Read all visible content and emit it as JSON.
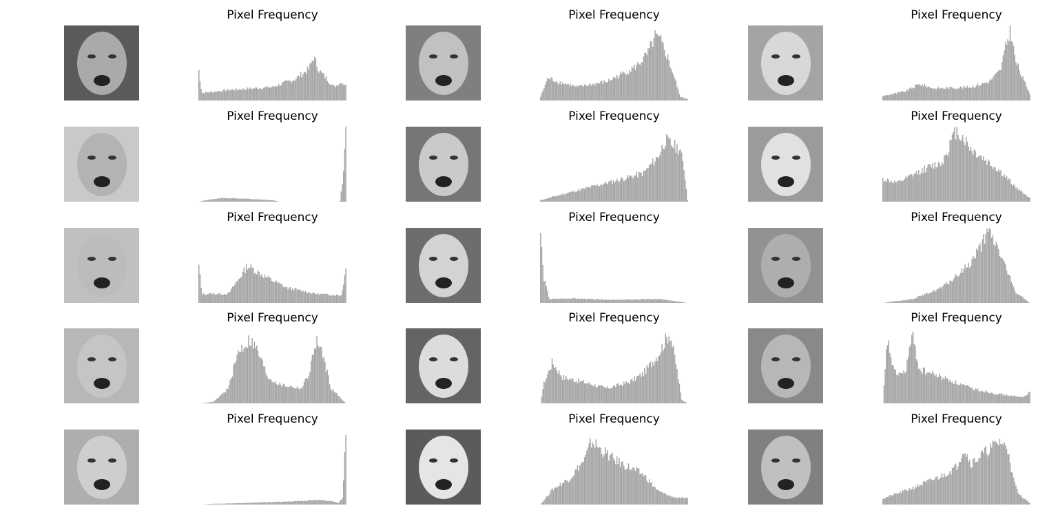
{
  "figure": {
    "rows": 5,
    "cols": 3,
    "panel_title": "Pixel Frequency",
    "bar_color": "#a6a6a6"
  },
  "chart_data": [
    {
      "type": "bar",
      "title": "Pixel Frequency",
      "face_icon": "face-photo",
      "profile": [
        [
          0,
          0.4
        ],
        [
          0.02,
          0.1
        ],
        [
          0.2,
          0.14
        ],
        [
          0.5,
          0.18
        ],
        [
          0.65,
          0.28
        ],
        [
          0.75,
          0.42
        ],
        [
          0.78,
          0.58
        ],
        [
          0.82,
          0.4
        ],
        [
          0.92,
          0.18
        ],
        [
          0.97,
          0.25
        ],
        [
          1,
          0.2
        ]
      ]
    },
    {
      "type": "bar",
      "title": "Pixel Frequency",
      "face_icon": "face-photo",
      "profile": [
        [
          0,
          0.05
        ],
        [
          0.05,
          0.3
        ],
        [
          0.12,
          0.25
        ],
        [
          0.25,
          0.18
        ],
        [
          0.45,
          0.25
        ],
        [
          0.65,
          0.45
        ],
        [
          0.73,
          0.62
        ],
        [
          0.78,
          0.85
        ],
        [
          0.82,
          0.78
        ],
        [
          0.87,
          0.55
        ],
        [
          0.92,
          0.25
        ],
        [
          0.95,
          0.05
        ],
        [
          1,
          0.02
        ]
      ]
    },
    {
      "type": "bar",
      "title": "Pixel Frequency",
      "face_icon": "face-photo",
      "profile": [
        [
          0,
          0.06
        ],
        [
          0.15,
          0.12
        ],
        [
          0.25,
          0.22
        ],
        [
          0.35,
          0.16
        ],
        [
          0.6,
          0.18
        ],
        [
          0.72,
          0.25
        ],
        [
          0.8,
          0.4
        ],
        [
          0.84,
          0.75
        ],
        [
          0.87,
          0.95
        ],
        [
          0.9,
          0.55
        ],
        [
          0.95,
          0.3
        ],
        [
          1,
          0.1
        ]
      ]
    },
    {
      "type": "bar",
      "title": "Pixel Frequency",
      "face_icon": "face-photo",
      "profile": [
        [
          0,
          0.0
        ],
        [
          0.05,
          0.02
        ],
        [
          0.15,
          0.05
        ],
        [
          0.3,
          0.04
        ],
        [
          0.5,
          0.02
        ],
        [
          0.55,
          0.0
        ],
        [
          0.96,
          0.0
        ],
        [
          0.98,
          0.3
        ],
        [
          1,
          0.98
        ]
      ]
    },
    {
      "type": "bar",
      "title": "Pixel Frequency",
      "face_icon": "face-photo",
      "profile": [
        [
          0,
          0.02
        ],
        [
          0.15,
          0.1
        ],
        [
          0.35,
          0.2
        ],
        [
          0.55,
          0.3
        ],
        [
          0.7,
          0.38
        ],
        [
          0.8,
          0.6
        ],
        [
          0.85,
          0.82
        ],
        [
          0.9,
          0.75
        ],
        [
          0.95,
          0.7
        ],
        [
          0.98,
          0.4
        ],
        [
          1,
          0.02
        ]
      ]
    },
    {
      "type": "bar",
      "title": "Pixel Frequency",
      "face_icon": "face-photo",
      "profile": [
        [
          0,
          0.3
        ],
        [
          0.1,
          0.25
        ],
        [
          0.2,
          0.35
        ],
        [
          0.3,
          0.45
        ],
        [
          0.4,
          0.52
        ],
        [
          0.5,
          0.95
        ],
        [
          0.55,
          0.85
        ],
        [
          0.6,
          0.7
        ],
        [
          0.7,
          0.55
        ],
        [
          0.8,
          0.4
        ],
        [
          0.9,
          0.2
        ],
        [
          1,
          0.05
        ]
      ]
    },
    {
      "type": "bar",
      "title": "Pixel Frequency",
      "face_icon": "face-photo",
      "profile": [
        [
          0,
          0.5
        ],
        [
          0.02,
          0.12
        ],
        [
          0.2,
          0.12
        ],
        [
          0.3,
          0.4
        ],
        [
          0.33,
          0.5
        ],
        [
          0.45,
          0.35
        ],
        [
          0.6,
          0.2
        ],
        [
          0.8,
          0.12
        ],
        [
          0.97,
          0.1
        ],
        [
          1,
          0.45
        ]
      ]
    },
    {
      "type": "bar",
      "title": "Pixel Frequency",
      "face_icon": "face-photo",
      "profile": [
        [
          0,
          0.95
        ],
        [
          0.02,
          0.35
        ],
        [
          0.04,
          0.2
        ],
        [
          0.06,
          0.05
        ],
        [
          0.2,
          0.06
        ],
        [
          0.5,
          0.04
        ],
        [
          0.8,
          0.05
        ],
        [
          0.9,
          0.03
        ],
        [
          1,
          0.0
        ]
      ]
    },
    {
      "type": "bar",
      "title": "Pixel Frequency",
      "face_icon": "face-photo",
      "profile": [
        [
          0,
          0.0
        ],
        [
          0.2,
          0.05
        ],
        [
          0.4,
          0.2
        ],
        [
          0.5,
          0.35
        ],
        [
          0.6,
          0.55
        ],
        [
          0.68,
          0.8
        ],
        [
          0.72,
          0.95
        ],
        [
          0.78,
          0.75
        ],
        [
          0.85,
          0.4
        ],
        [
          0.9,
          0.15
        ],
        [
          1,
          0.0
        ]
      ]
    },
    {
      "type": "bar",
      "title": "Pixel Frequency",
      "face_icon": "face-photo",
      "profile": [
        [
          0,
          0.0
        ],
        [
          0.1,
          0.02
        ],
        [
          0.2,
          0.2
        ],
        [
          0.27,
          0.7
        ],
        [
          0.35,
          0.85
        ],
        [
          0.4,
          0.7
        ],
        [
          0.47,
          0.35
        ],
        [
          0.55,
          0.25
        ],
        [
          0.7,
          0.2
        ],
        [
          0.75,
          0.4
        ],
        [
          0.8,
          0.85
        ],
        [
          0.85,
          0.6
        ],
        [
          0.9,
          0.2
        ],
        [
          0.96,
          0.08
        ],
        [
          1,
          0.0
        ]
      ]
    },
    {
      "type": "bar",
      "title": "Pixel Frequency",
      "face_icon": "face-photo",
      "profile": [
        [
          0,
          0.0
        ],
        [
          0.02,
          0.25
        ],
        [
          0.08,
          0.55
        ],
        [
          0.15,
          0.35
        ],
        [
          0.3,
          0.28
        ],
        [
          0.45,
          0.2
        ],
        [
          0.6,
          0.28
        ],
        [
          0.7,
          0.4
        ],
        [
          0.8,
          0.65
        ],
        [
          0.88,
          0.95
        ],
        [
          0.92,
          0.55
        ],
        [
          0.96,
          0.05
        ],
        [
          1,
          0.0
        ]
      ]
    },
    {
      "type": "bar",
      "title": "Pixel Frequency",
      "face_icon": "face-photo",
      "profile": [
        [
          0,
          0.0
        ],
        [
          0.03,
          0.85
        ],
        [
          0.08,
          0.4
        ],
        [
          0.15,
          0.4
        ],
        [
          0.2,
          0.9
        ],
        [
          0.25,
          0.45
        ],
        [
          0.4,
          0.35
        ],
        [
          0.6,
          0.2
        ],
        [
          0.8,
          0.12
        ],
        [
          0.95,
          0.08
        ],
        [
          1,
          0.15
        ]
      ]
    },
    {
      "type": "bar",
      "title": "Pixel Frequency",
      "face_icon": "face-photo",
      "profile": [
        [
          0,
          0.0
        ],
        [
          0.1,
          0.01
        ],
        [
          0.3,
          0.02
        ],
        [
          0.6,
          0.04
        ],
        [
          0.8,
          0.06
        ],
        [
          0.9,
          0.05
        ],
        [
          0.95,
          0.02
        ],
        [
          0.98,
          0.1
        ],
        [
          1,
          0.98
        ]
      ]
    },
    {
      "type": "bar",
      "title": "Pixel Frequency",
      "face_icon": "face-photo",
      "profile": [
        [
          0,
          0.0
        ],
        [
          0.08,
          0.2
        ],
        [
          0.2,
          0.35
        ],
        [
          0.3,
          0.6
        ],
        [
          0.35,
          0.85
        ],
        [
          0.4,
          0.75
        ],
        [
          0.5,
          0.6
        ],
        [
          0.6,
          0.5
        ],
        [
          0.7,
          0.4
        ],
        [
          0.8,
          0.18
        ],
        [
          0.9,
          0.1
        ],
        [
          1,
          0.08
        ]
      ]
    },
    {
      "type": "bar",
      "title": "Pixel Frequency",
      "face_icon": "face-photo",
      "profile": [
        [
          0,
          0.08
        ],
        [
          0.2,
          0.22
        ],
        [
          0.4,
          0.38
        ],
        [
          0.5,
          0.5
        ],
        [
          0.55,
          0.75
        ],
        [
          0.6,
          0.55
        ],
        [
          0.7,
          0.7
        ],
        [
          0.8,
          0.85
        ],
        [
          0.86,
          0.7
        ],
        [
          0.88,
          0.4
        ],
        [
          0.92,
          0.15
        ],
        [
          1,
          0.02
        ]
      ]
    }
  ]
}
